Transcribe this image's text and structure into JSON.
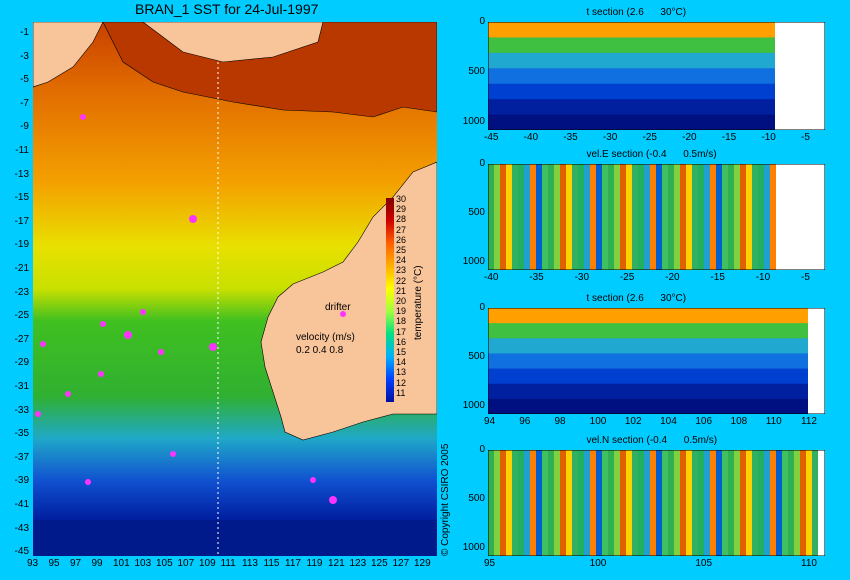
{
  "map": {
    "title": "BRAN_1 SST for 24-Jul-1997",
    "lat_ticks": [
      "-1",
      "-3",
      "-5",
      "-7",
      "-9",
      "-11",
      "-13",
      "-15",
      "-17",
      "-19",
      "-21",
      "-23",
      "-25",
      "-27",
      "-29",
      "-31",
      "-33",
      "-35",
      "-37",
      "-39",
      "-41",
      "-43",
      "-45"
    ],
    "lon_ticks": [
      "93",
      "95",
      "97",
      "99",
      "101",
      "103",
      "105",
      "107",
      "109",
      "111",
      "113",
      "115",
      "117",
      "119",
      "121",
      "123",
      "125",
      "127",
      "129"
    ],
    "drifter_label": "drifter",
    "velocity_label": "velocity (m/s)",
    "velocity_values": "0.2 0.4 0.8",
    "colorbar_ticks": [
      "30",
      "29",
      "28",
      "27",
      "26",
      "25",
      "24",
      "23",
      "22",
      "21",
      "20",
      "19",
      "18",
      "17",
      "16",
      "15",
      "14",
      "13",
      "12",
      "11"
    ],
    "colorbar_label": "temperature (°C)",
    "copyright": "© Copyright CSIRO 2005",
    "colors": {
      "land": "#f8c49a",
      "deep_blue": "#001a8c",
      "background": "#00ccff",
      "drifter": "#ff33ff"
    }
  },
  "panels": [
    {
      "title": "t section (2.6      30°C)",
      "y_ticks": [
        "0",
        "500",
        "1000"
      ],
      "x_ticks": [
        "-45",
        "-40",
        "-35",
        "-30",
        "-25",
        "-20",
        "-15",
        "-10",
        "-5"
      ]
    },
    {
      "title": "vel.E section (-0.4      0.5m/s)",
      "y_ticks": [
        "0",
        "500",
        "1000"
      ],
      "x_ticks": [
        "-40",
        "-35",
        "-30",
        "-25",
        "-20",
        "-15",
        "-10",
        "-5"
      ]
    },
    {
      "title": "t section (2.6      30°C)",
      "y_ticks": [
        "0",
        "500",
        "1000"
      ],
      "x_ticks": [
        "94",
        "96",
        "98",
        "100",
        "102",
        "104",
        "106",
        "108",
        "110",
        "112"
      ]
    },
    {
      "title": "vel.N section (-0.4      0.5m/s)",
      "y_ticks": [
        "0",
        "500",
        "1000"
      ],
      "x_ticks": [
        "95",
        "100",
        "105",
        "110"
      ]
    }
  ]
}
